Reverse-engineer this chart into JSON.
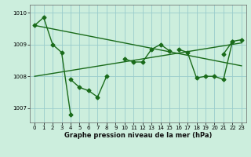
{
  "x": [
    0,
    1,
    2,
    3,
    4,
    5,
    6,
    7,
    8,
    9,
    10,
    11,
    12,
    13,
    14,
    15,
    16,
    17,
    18,
    19,
    20,
    21,
    22,
    23
  ],
  "series1_x": [
    0,
    1,
    2,
    3,
    4
  ],
  "series1_y": [
    1009.6,
    1009.85,
    1009.0,
    1008.75,
    1006.8
  ],
  "series2_x": [
    4,
    5,
    6,
    7,
    8
  ],
  "series2_y": [
    1007.9,
    1007.65,
    1007.55,
    1007.35,
    1008.0
  ],
  "series3_x": [
    10,
    11,
    12,
    13,
    14,
    15
  ],
  "series3_y": [
    1008.55,
    1008.45,
    1008.45,
    1008.85,
    1009.0,
    1008.8
  ],
  "series4_x": [
    16,
    17,
    18,
    19,
    20,
    21,
    22
  ],
  "series4_y": [
    1008.85,
    1008.75,
    1007.95,
    1008.0,
    1008.0,
    1007.9,
    1009.1
  ],
  "series5_x": [
    21,
    22,
    23
  ],
  "series5_y": [
    1008.7,
    1009.1,
    1009.15
  ],
  "trend1_x": [
    0,
    23
  ],
  "trend1_y": [
    1009.6,
    1008.33
  ],
  "trend2_x": [
    0,
    23
  ],
  "trend2_y": [
    1008.0,
    1009.05
  ],
  "ylim": [
    1006.55,
    1010.25
  ],
  "yticks": [
    1007,
    1008,
    1009,
    1010
  ],
  "xticks": [
    0,
    1,
    2,
    3,
    4,
    5,
    6,
    7,
    8,
    9,
    10,
    11,
    12,
    13,
    14,
    15,
    16,
    17,
    18,
    19,
    20,
    21,
    22,
    23
  ],
  "xlabel": "Graphe pression niveau de la mer (hPa)",
  "line_color": "#1a6b1a",
  "bg_color": "#cceedd",
  "grid_color": "#99cccc",
  "marker": "D",
  "marker_size": 2.5,
  "line_width": 1.0
}
